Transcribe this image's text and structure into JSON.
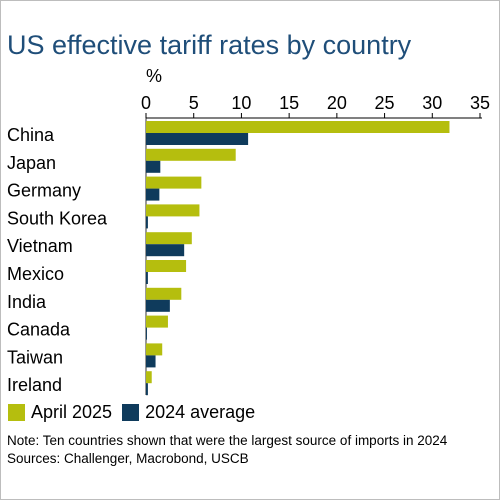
{
  "colors": {
    "title": "#1f4e79",
    "april_2025": "#b5be0e",
    "avg_2024": "#0f3b5c",
    "axis": "#000000"
  },
  "title": "US effective tariff rates by country",
  "note": "Note: Ten countries shown that were the largest source of imports in 2024",
  "sources": "Sources: Challenger, Macrobond, USCB",
  "chart_data": {
    "type": "bar",
    "orientation": "horizontal",
    "title": "US effective tariff rates by country",
    "xlabel": "%",
    "xlim": [
      0,
      35
    ],
    "xticks": [
      0,
      5,
      10,
      15,
      20,
      25,
      30,
      35
    ],
    "grid": false,
    "legend_position": "bottom-left",
    "categories": [
      "China",
      "Japan",
      "Germany",
      "South Korea",
      "Vietnam",
      "Mexico",
      "India",
      "Canada",
      "Taiwan",
      "Ireland"
    ],
    "series": [
      {
        "name": "April 2025",
        "color": "#b5be0e",
        "values": [
          31.8,
          9.4,
          5.8,
          5.6,
          4.8,
          4.2,
          3.7,
          2.3,
          1.7,
          0.6
        ]
      },
      {
        "name": "2024 average",
        "color": "#0f3b5c",
        "values": [
          10.7,
          1.5,
          1.4,
          0.2,
          4.0,
          0.2,
          2.5,
          0.1,
          1.0,
          0.2
        ]
      }
    ]
  }
}
